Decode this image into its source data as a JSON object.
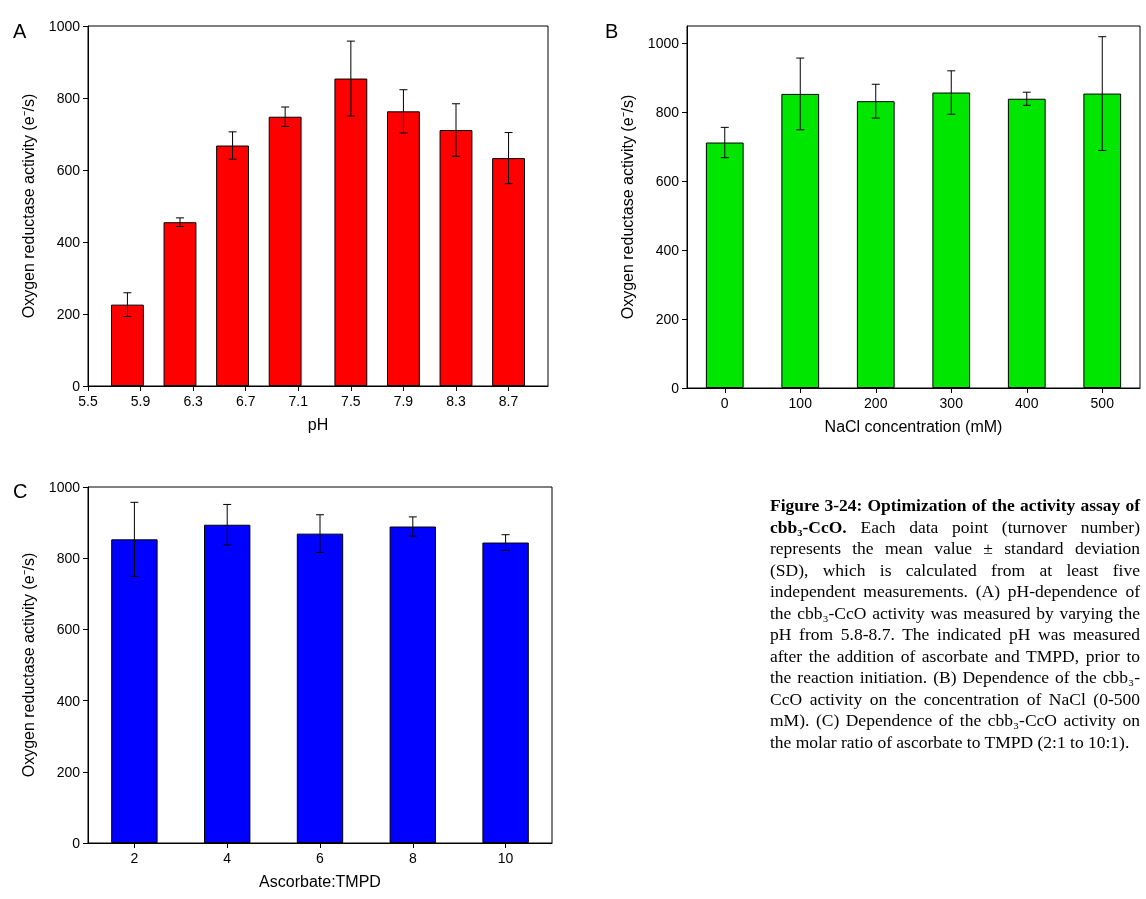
{
  "chart_data": [
    {
      "type": "bar",
      "title": "A",
      "xlabel": "pH",
      "ylabel": "Oxygen reductase activity (e⁻/s)",
      "x": [
        5.8,
        6.2,
        6.6,
        7.0,
        7.5,
        7.9,
        8.3,
        8.7
      ],
      "values": [
        226,
        455,
        668,
        748,
        854,
        763,
        711,
        633
      ],
      "errors": [
        33,
        12,
        38,
        27,
        104,
        60,
        73,
        71
      ],
      "color": "#ff0000",
      "xlim": [
        5.5,
        9.0
      ],
      "xticks": [
        5.5,
        5.9,
        6.3,
        6.7,
        7.1,
        7.5,
        7.9,
        8.3,
        8.7
      ],
      "ylim": [
        0,
        1000
      ],
      "yticks": [
        0,
        200,
        400,
        600,
        800,
        1000
      ],
      "grid": false
    },
    {
      "type": "bar",
      "title": "B",
      "xlabel": "NaCl concentration (mM)",
      "ylabel": "Oxygen reductase activity (e⁻/s)",
      "categories": [
        "0",
        "100",
        "200",
        "300",
        "400",
        "500"
      ],
      "values": [
        712,
        853,
        832,
        857,
        839,
        854
      ],
      "errors": [
        44,
        104,
        49,
        63,
        19,
        165
      ],
      "color": "#00e600",
      "ylim": [
        0,
        1050
      ],
      "yticks": [
        0,
        200,
        400,
        600,
        800,
        1000
      ],
      "grid": false
    },
    {
      "type": "bar",
      "title": "C",
      "xlabel": "Ascorbate:TMPD",
      "ylabel": "Oxygen reductase activity (e⁻/s)",
      "categories": [
        "2",
        "4",
        "6",
        "8",
        "10"
      ],
      "values": [
        853,
        894,
        869,
        889,
        844
      ],
      "errors": [
        104,
        57,
        53,
        27,
        22
      ],
      "color": "#0000ff",
      "ylim": [
        0,
        1000
      ],
      "yticks": [
        0,
        200,
        400,
        600,
        800,
        1000
      ],
      "grid": false
    },
    {
      "type": "other",
      "title": "Figure 3-24: Optimization of the activity assay of cbb₃-CcO.",
      "annotations": [
        "Each data point (turnover number) represents the mean value ± standard deviation (SD), which is calculated from at least five independent measurements. (A) pH-dependence of the cbb₃-CcO activity was measured by varying the pH from 5.8-8.7. The indicated pH was measured after the addition of ascorbate and TMPD, prior to the reaction initiation. (B) Dependence of the cbb₃-CcO activity on the concentration of NaCl (0-500 mM). (C) Dependence of the cbb₃-CcO activity on the molar ratio of ascorbate to TMPD (2:1 to 10:1)."
      ]
    }
  ]
}
